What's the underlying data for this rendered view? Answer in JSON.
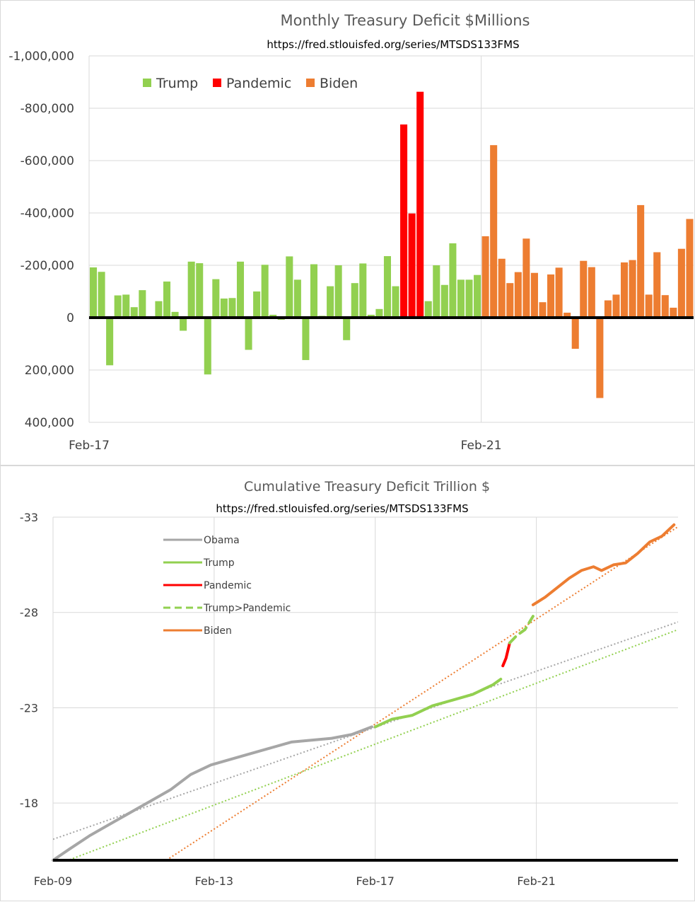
{
  "colors": {
    "trump": "#92d050",
    "pandemic": "#ff0000",
    "biden": "#ed7d31",
    "obama": "#a6a6a6",
    "grid": "#d9d9d9",
    "axis": "#000000"
  },
  "chart_data": [
    {
      "type": "bar",
      "title": "Monthly Treasury Deficit $Millions",
      "subtitle": "https://fred.stlouisfed.org/series/MTSDS133FMS",
      "y_axis_reversed": true,
      "ylim": [
        -1000000,
        400000
      ],
      "yticks": [
        -1000000,
        -800000,
        -600000,
        -400000,
        -200000,
        0,
        200000,
        400000
      ],
      "ytick_labels": [
        "-1,000,000",
        "-800,000",
        "-600,000",
        "-400,000",
        "-200,000",
        "0",
        "200,000",
        "400,000"
      ],
      "xtick_labels": [
        "Feb-17",
        "Feb-21"
      ],
      "grid": true,
      "legend_position": "top-left",
      "series": [
        {
          "name": "Trump",
          "color_key": "trump",
          "values": [
            -192000,
            -175000,
            182000,
            -85000,
            -88000,
            -40000,
            -105000,
            0,
            -63000,
            -138000,
            -22000,
            50000,
            -214000,
            -208000,
            217000,
            -147000,
            -73000,
            -75000,
            -214000,
            123000,
            -100000,
            -202000,
            -11000,
            8000,
            -234000,
            -145000,
            162000,
            -204000,
            -7000,
            -120000,
            -200000,
            86000,
            -132000,
            -207000,
            -11000,
            -33000,
            -235000,
            -120000
          ]
        },
        {
          "name": "Pandemic",
          "color_key": "pandemic",
          "values": [
            -738000,
            -398000,
            -863000
          ]
        },
        {
          "name": "Trump",
          "color_key": "trump",
          "values": [
            -63000,
            -200000,
            -125000,
            -284000,
            -145000,
            -145000,
            -163000
          ]
        },
        {
          "name": "Biden",
          "color_key": "biden",
          "values": [
            -311000,
            -659000,
            -225000,
            -132000,
            -174000,
            -302000,
            -171000,
            -59000,
            -165000,
            -191000,
            -19000,
            119000,
            -217000,
            -193000,
            307000,
            -66000,
            -88000,
            -211000,
            -220000,
            -430000,
            -88000,
            -250000,
            -86000,
            -38000,
            -263000,
            -377000
          ]
        }
      ],
      "legend": [
        "Trump",
        "Pandemic",
        "Biden"
      ]
    },
    {
      "type": "line",
      "title": "Cumulative Treasury Deficit Trillion $",
      "subtitle": "https://fred.stlouisfed.org/series/MTSDS133FMS",
      "y_axis_reversed": true,
      "ylim": [
        -33,
        -15
      ],
      "yticks": [
        -33,
        -28,
        -23,
        -18
      ],
      "ytick_labels": [
        "-33",
        "-28",
        "-23",
        "-18"
      ],
      "xlim": [
        2009.083,
        2024.6
      ],
      "xticks": [
        2009.083,
        2013.083,
        2017.083,
        2021.083
      ],
      "xtick_labels": [
        "Feb-09",
        "Feb-13",
        "Feb-17",
        "Feb-21"
      ],
      "grid": true,
      "legend_position": "top-left",
      "legend": [
        "Obama",
        "Trump",
        "Pandemic",
        "Trump>Pandemic",
        "Biden"
      ],
      "series": [
        {
          "name": "Obama",
          "color_key": "obama",
          "style": "solid",
          "x": [
            2009.083,
            2009.5,
            2010.0,
            2010.5,
            2011.0,
            2011.5,
            2012.0,
            2012.5,
            2013.0,
            2013.5,
            2014.0,
            2014.5,
            2015.0,
            2015.5,
            2016.0,
            2016.5,
            2017.0
          ],
          "y": [
            -15.0,
            -15.6,
            -16.3,
            -16.9,
            -17.5,
            -18.1,
            -18.7,
            -19.5,
            -20.0,
            -20.3,
            -20.6,
            -20.9,
            -21.2,
            -21.3,
            -21.4,
            -21.6,
            -22.0
          ]
        },
        {
          "name": "Trump",
          "color_key": "trump",
          "style": "solid",
          "x": [
            2017.083,
            2017.5,
            2018.0,
            2018.5,
            2019.0,
            2019.5,
            2020.0,
            2020.2
          ],
          "y": [
            -22.0,
            -22.4,
            -22.6,
            -23.1,
            -23.4,
            -23.7,
            -24.2,
            -24.5
          ]
        },
        {
          "name": "Pandemic",
          "color_key": "pandemic",
          "style": "solid",
          "x": [
            2020.25,
            2020.33,
            2020.42
          ],
          "y": [
            -25.2,
            -25.6,
            -26.4
          ]
        },
        {
          "name": "Trump>Pandemic",
          "color_key": "trump",
          "style": "dashed",
          "x": [
            2020.42,
            2020.6,
            2020.8,
            2021.0
          ],
          "y": [
            -26.4,
            -26.8,
            -27.1,
            -27.8
          ]
        },
        {
          "name": "Biden",
          "color_key": "biden",
          "style": "solid",
          "x": [
            2021.0,
            2021.3,
            2021.6,
            2021.9,
            2022.2,
            2022.5,
            2022.7,
            2023.0,
            2023.3,
            2023.6,
            2023.9,
            2024.2,
            2024.5
          ],
          "y": [
            -28.4,
            -28.8,
            -29.3,
            -29.8,
            -30.2,
            -30.4,
            -30.2,
            -30.5,
            -30.6,
            -31.1,
            -31.7,
            -32.0,
            -32.6
          ]
        }
      ],
      "trendlines": [
        {
          "color_key": "obama",
          "x": [
            2009.083,
            2024.6
          ],
          "y": [
            -16.1,
            -27.5
          ]
        },
        {
          "color_key": "trump",
          "x": [
            2009.083,
            2024.6
          ],
          "y": [
            -14.7,
            -27.1
          ]
        },
        {
          "color_key": "biden",
          "x": [
            2011.75,
            2024.6
          ],
          "y": [
            -14.8,
            -32.5
          ]
        }
      ]
    }
  ]
}
